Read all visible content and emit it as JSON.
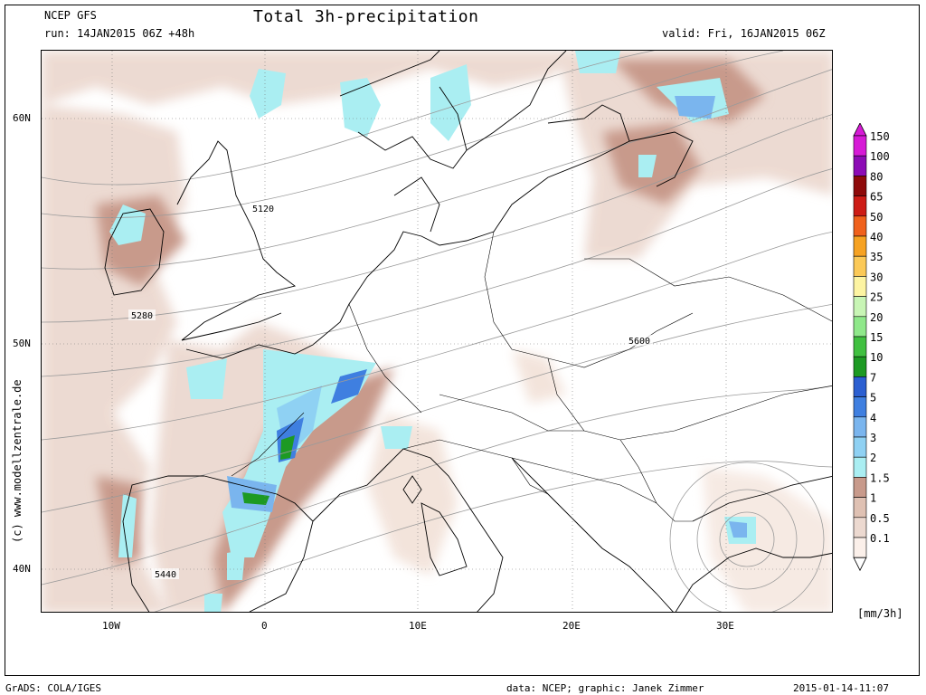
{
  "header": {
    "model": "NCEP GFS",
    "run": "run: 14JAN2015 06Z +48h",
    "title": "Total 3h-precipitation",
    "valid": "valid: Fri, 16JAN2015 06Z"
  },
  "map": {
    "lat_labels": [
      "60N",
      "50N",
      "40N"
    ],
    "lon_labels": [
      "10W",
      "0",
      "10E",
      "20E",
      "30E"
    ],
    "contour_labels": [
      "5120",
      "5280",
      "5440",
      "5600"
    ]
  },
  "legend": {
    "unit": "[mm/3h]",
    "levels": [
      "0.1",
      "0.5",
      "1",
      "1.5",
      "2",
      "3",
      "4",
      "5",
      "7",
      "10",
      "15",
      "20",
      "25",
      "30",
      "35",
      "40",
      "50",
      "65",
      "80",
      "100",
      "150"
    ],
    "colors": [
      "#fbf0ea",
      "#ecd9d0",
      "#dfc1b3",
      "#c89a8b",
      "#aaeef2",
      "#8fd1f3",
      "#7ab5ee",
      "#3f7fe0",
      "#2b5fd1",
      "#1d9a23",
      "#40c040",
      "#8fe88a",
      "#c8f5b5",
      "#fdf4a2",
      "#fbc957",
      "#f6a222",
      "#f0611c",
      "#cd1c16",
      "#8e0a0a",
      "#8c0bb5",
      "#d61ad6"
    ]
  },
  "footer": {
    "left": "GrADS: COLA/IGES",
    "data": "data: NCEP; graphic: Janek Zimmer",
    "date": "2015-01-14-11:07"
  },
  "credit": "(c) www.modellzentrale.de"
}
